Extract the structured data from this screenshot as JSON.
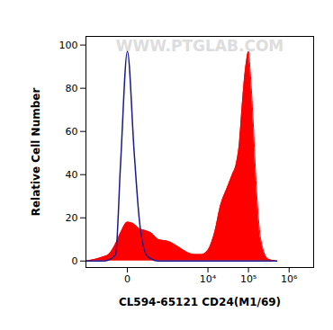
{
  "chart_data": {
    "type": "area",
    "x_label": "CL594-65121 CD24(M1/69)",
    "y_label": "Relative Cell Number",
    "annotations": [
      "WWW.PTGLAB.COM"
    ],
    "log": "x",
    "grid": false,
    "xlim": [
      -1000,
      4000000
    ],
    "xticks": [
      {
        "value": 0,
        "label": "0"
      },
      {
        "value": 10000,
        "label": "10⁴"
      },
      {
        "value": 100000,
        "label": "10⁵"
      },
      {
        "value": 1000000,
        "label": "10⁶"
      }
    ],
    "ylim": [
      -3,
      104
    ],
    "yticks": [
      0,
      20,
      40,
      60,
      80,
      100
    ],
    "x": [
      -1000,
      -500,
      -300,
      -200,
      -100,
      -50,
      0,
      50,
      100,
      200,
      300,
      500,
      1000,
      2000,
      3000,
      5000,
      7000,
      10000,
      15000,
      20000,
      30000,
      40000,
      50000,
      60000,
      70000,
      80000,
      90000,
      100000,
      110000,
      130000,
      150000,
      200000,
      300000,
      500000
    ],
    "series": [
      {
        "type": "area",
        "color": "#ff0000",
        "values": [
          0,
          1,
          2,
          3,
          8,
          13,
          18,
          17,
          15,
          14,
          13,
          10,
          9,
          6,
          4,
          3,
          3,
          5,
          14,
          25,
          34,
          40,
          45,
          55,
          72,
          85,
          93,
          97,
          88,
          65,
          40,
          10,
          1,
          0
        ]
      },
      {
        "type": "line",
        "color": "#1a1a8c",
        "values": [
          0,
          0,
          0,
          0.5,
          3,
          45,
          97,
          50,
          20,
          3,
          1,
          0,
          0,
          0,
          0,
          0,
          0,
          0,
          0,
          0,
          0,
          0,
          0,
          0,
          0,
          0,
          0,
          0,
          0,
          0,
          0,
          0,
          0,
          0
        ]
      }
    ]
  }
}
